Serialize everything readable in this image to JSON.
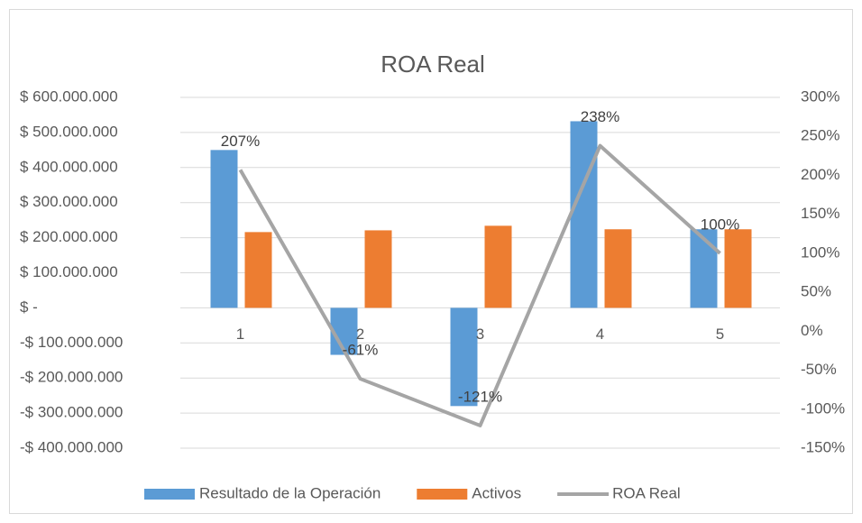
{
  "chart_data": {
    "type": "combo",
    "title": "ROA Real",
    "categories": [
      "1",
      "2",
      "3",
      "4",
      "5"
    ],
    "series": [
      {
        "name": "Resultado de la Operación",
        "type": "bar",
        "axis": "y",
        "color": "#5b9bd5",
        "values": [
          450000000,
          -134000000,
          -280000000,
          532000000,
          224000000
        ]
      },
      {
        "name": "Activos",
        "type": "bar",
        "axis": "y",
        "color": "#ed7d31",
        "values": [
          216000000,
          221000000,
          234000000,
          224000000,
          224000000
        ]
      },
      {
        "name": "ROA Real",
        "type": "line",
        "axis": "y2",
        "color": "#a5a5a5",
        "values": [
          207,
          -61,
          -121,
          238,
          100
        ],
        "value_labels": [
          "207%",
          "-61%",
          "-121%",
          "238%",
          "100%"
        ]
      }
    ],
    "ylim": [
      -400000000,
      600000000
    ],
    "yticks": [
      {
        "value": -400000000,
        "label": "-$ 400.000.000"
      },
      {
        "value": -300000000,
        "label": "-$ 300.000.000"
      },
      {
        "value": -200000000,
        "label": "-$ 200.000.000"
      },
      {
        "value": -100000000,
        "label": "-$ 100.000.000"
      },
      {
        "value": 0,
        "label": "$ -"
      },
      {
        "value": 100000000,
        "label": "$ 100.000.000"
      },
      {
        "value": 200000000,
        "label": "$ 200.000.000"
      },
      {
        "value": 300000000,
        "label": "$ 300.000.000"
      },
      {
        "value": 400000000,
        "label": "$ 400.000.000"
      },
      {
        "value": 500000000,
        "label": "$ 500.000.000"
      },
      {
        "value": 600000000,
        "label": "$ 600.000.000"
      }
    ],
    "y2lim": [
      -150,
      300
    ],
    "y2ticks": [
      {
        "value": -150,
        "label": "-150%"
      },
      {
        "value": -100,
        "label": "-100%"
      },
      {
        "value": -50,
        "label": "-50%"
      },
      {
        "value": 0,
        "label": "0%"
      },
      {
        "value": 50,
        "label": "50%"
      },
      {
        "value": 100,
        "label": "100%"
      },
      {
        "value": 150,
        "label": "150%"
      },
      {
        "value": 200,
        "label": "200%"
      },
      {
        "value": 250,
        "label": "250%"
      },
      {
        "value": 300,
        "label": "300%"
      }
    ],
    "grid": true,
    "legend": "bottom"
  }
}
